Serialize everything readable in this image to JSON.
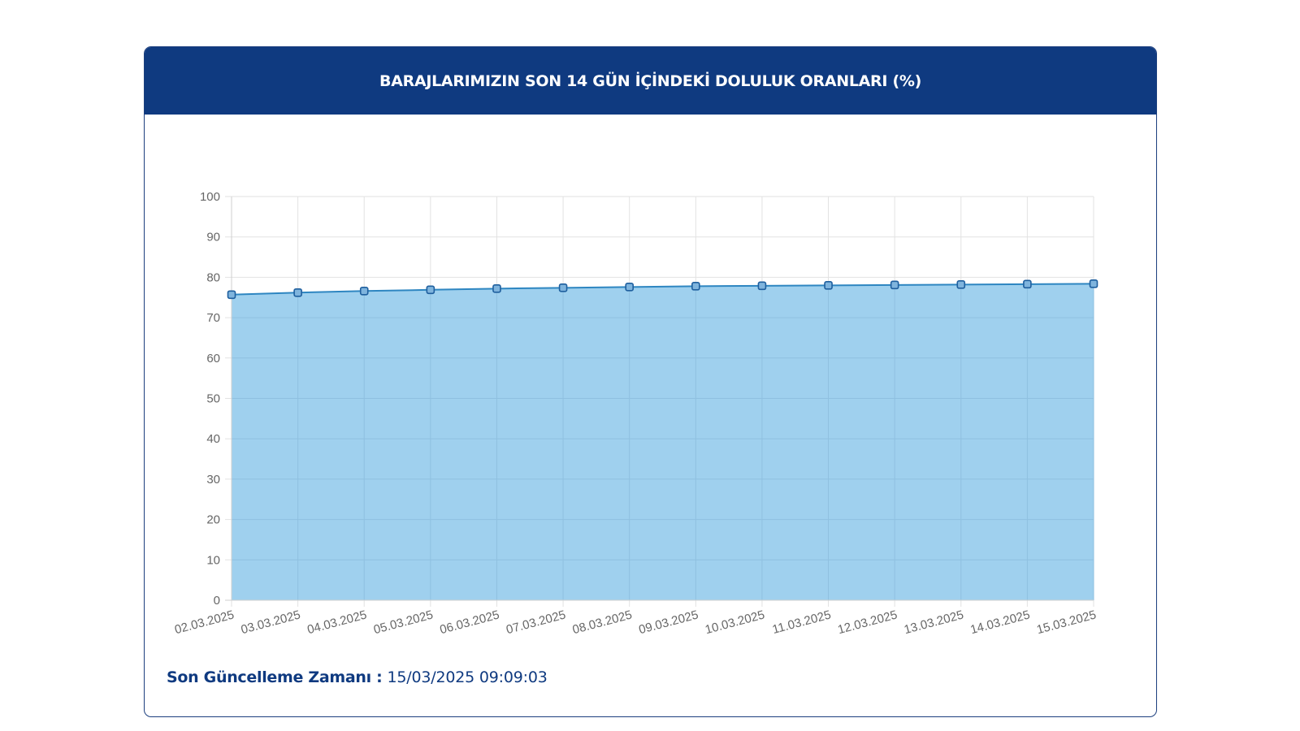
{
  "header": {
    "title": "BARAJLARIMIZIN SON 14 GÜN İÇİNDEKİ DOLULUK ORANLARI (%)"
  },
  "footer": {
    "label": "Son Güncelleme Zamanı :",
    "value": "15/03/2025 09:09:03"
  },
  "colors": {
    "header_bg": "#0f3a80",
    "area_fill": "#9fd0ee",
    "line": "#2e86c1",
    "point_fill": "#7fb4dd",
    "point_stroke": "#1f5f9e",
    "grid": "#e2e2e2",
    "tick_text": "#666666"
  },
  "chart_data": {
    "type": "area",
    "title": "BARAJLARIMIZIN SON 14 GÜN İÇİNDEKİ DOLULUK ORANLARI (%)",
    "xlabel": "",
    "ylabel": "",
    "ylim": [
      0,
      100
    ],
    "yticks": [
      0,
      10,
      20,
      30,
      40,
      50,
      60,
      70,
      80,
      90,
      100
    ],
    "grid": true,
    "legend": "none",
    "x": [
      "02.03.2025",
      "03.03.2025",
      "04.03.2025",
      "05.03.2025",
      "06.03.2025",
      "07.03.2025",
      "08.03.2025",
      "09.03.2025",
      "10.03.2025",
      "11.03.2025",
      "12.03.2025",
      "13.03.2025",
      "14.03.2025",
      "15.03.2025"
    ],
    "series": [
      {
        "values": [
          75.7,
          76.2,
          76.6,
          76.9,
          77.2,
          77.4,
          77.6,
          77.8,
          77.9,
          78.0,
          78.1,
          78.2,
          78.3,
          78.4
        ]
      }
    ]
  }
}
